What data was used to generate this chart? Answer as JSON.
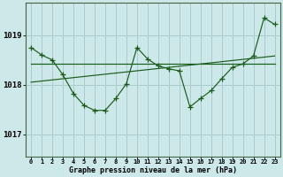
{
  "title": "Graphe pression niveau de la mer (hPa)",
  "bg_color": "#cce8e8",
  "grid_color": "#aacccc",
  "line_color": "#1a5c1a",
  "x_ticks": [
    0,
    1,
    2,
    3,
    4,
    5,
    6,
    7,
    8,
    9,
    10,
    11,
    12,
    13,
    14,
    15,
    16,
    17,
    18,
    19,
    20,
    21,
    22,
    23
  ],
  "y_ticks": [
    1017,
    1018,
    1019
  ],
  "ylim": [
    1016.55,
    1019.65
  ],
  "xlim": [
    -0.5,
    23.5
  ],
  "series_main": [
    1018.75,
    1018.6,
    1018.5,
    1018.2,
    1017.82,
    1017.58,
    1017.48,
    1017.48,
    1017.72,
    1018.02,
    1018.75,
    1018.52,
    1018.38,
    1018.32,
    1018.28,
    1017.55,
    1017.72,
    1017.88,
    1018.12,
    1018.35,
    1018.42,
    1018.58,
    1019.35,
    1019.22
  ],
  "series_flat": [
    1018.42,
    1018.42,
    1018.42,
    1018.42,
    1018.42,
    1018.42,
    1018.42,
    1018.42,
    1018.42,
    1018.42,
    1018.42,
    1018.42,
    1018.42,
    1018.42,
    1018.42,
    1018.42,
    1018.42,
    1018.42,
    1018.42,
    1018.42,
    1018.42,
    1018.42,
    1018.42,
    1018.42
  ],
  "series_trend_x": [
    0,
    23
  ],
  "series_trend_y": [
    1018.05,
    1018.58
  ],
  "marker_x": [
    0,
    1,
    2,
    3,
    4,
    5,
    6,
    7,
    8,
    9,
    10,
    11,
    12,
    13,
    14,
    15,
    16,
    17,
    18,
    19,
    20,
    21,
    22,
    23
  ],
  "xlabel_fontsize": 6.0,
  "ylabel_fontsize": 6.0,
  "xtick_fontsize": 5.0,
  "ytick_fontsize": 6.5
}
